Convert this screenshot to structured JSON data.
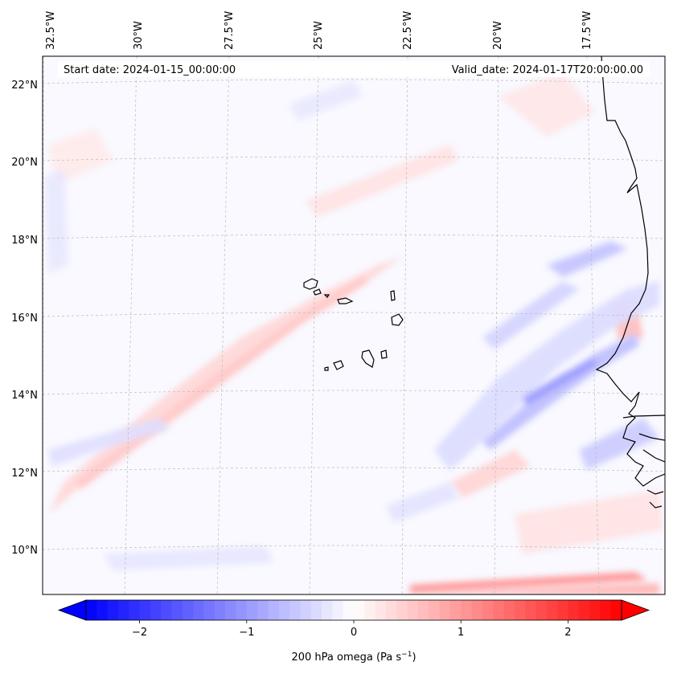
{
  "header": {
    "start_date": "Start date: 2024-01-15_00:00:00",
    "valid_date": "Valid_date: 2024-01-17T20:00:00.00"
  },
  "map": {
    "projection": "lambert-conformal",
    "extent_lon": [
      -33.0,
      -15.0
    ],
    "extent_lat": [
      8.9,
      22.7
    ],
    "lon_ticks": [
      {
        "value": -32.5,
        "label": "32.5°W"
      },
      {
        "value": -30.0,
        "label": "30°W"
      },
      {
        "value": -27.5,
        "label": "27.5°W"
      },
      {
        "value": -25.0,
        "label": "25°W"
      },
      {
        "value": -22.5,
        "label": "22.5°W"
      },
      {
        "value": -20.0,
        "label": "20°W"
      },
      {
        "value": -17.5,
        "label": "17.5°W"
      }
    ],
    "lat_ticks": [
      {
        "value": 10,
        "label": "10°N"
      },
      {
        "value": 12,
        "label": "12°N"
      },
      {
        "value": 14,
        "label": "14°N"
      },
      {
        "value": 16,
        "label": "16°N"
      },
      {
        "value": 18,
        "label": "18°N"
      },
      {
        "value": 20,
        "label": "20°N"
      },
      {
        "value": 22,
        "label": "22°N"
      }
    ],
    "gridlines": true,
    "features": [
      "cape-verde-islands",
      "west-african-coastline"
    ],
    "field": "200 hPa omega",
    "field_pattern": [
      {
        "feature": "ascent-band",
        "sign": "negative",
        "from": [
          -21.0,
          10.0
        ],
        "to": [
          -15.5,
          17.5
        ],
        "max_abs": 1.3
      },
      {
        "feature": "subsidence-band",
        "sign": "positive",
        "from": [
          -32.5,
          10.8
        ],
        "to": [
          -22.0,
          17.8
        ],
        "max_abs": 0.4
      },
      {
        "feature": "boundary-strip",
        "sign": "positive",
        "from": [
          -24.0,
          9.1
        ],
        "to": [
          -15.5,
          9.1
        ],
        "max_abs": 1.4
      }
    ]
  },
  "colorbar": {
    "colormap": "bwr",
    "vmin": -2.5,
    "vmax": 2.5,
    "levels": 50,
    "extend": "both",
    "ticks": [
      {
        "value": -2,
        "label": "−2"
      },
      {
        "value": -1,
        "label": "−1"
      },
      {
        "value": 0,
        "label": "0"
      },
      {
        "value": 1,
        "label": "1"
      },
      {
        "value": 2,
        "label": "2"
      }
    ],
    "label_main": "200 hPa omega (Pa s",
    "label_exp": "−1",
    "label_close": ")"
  },
  "colors": {
    "negative": "#0000ff",
    "positive": "#ff0000",
    "coast": "#000000",
    "grid": "#bbbbbb"
  }
}
